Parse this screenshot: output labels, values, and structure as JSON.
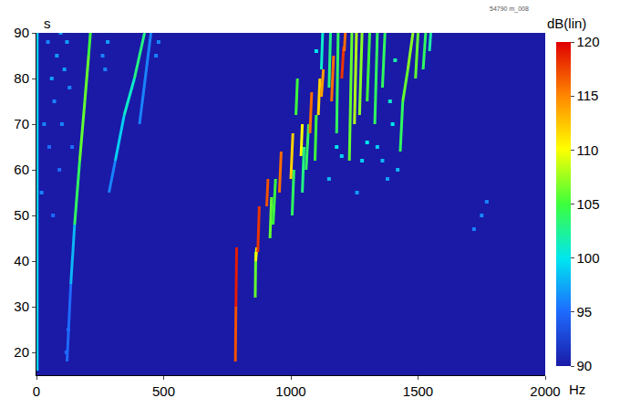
{
  "chart_data": {
    "type": "heatmap",
    "x_label": "Hz",
    "y_label": "s",
    "colorbar_label": "dB(lin)",
    "annotations": [
      "54790 m_008"
    ],
    "xlim": [
      0,
      2000
    ],
    "xticks": [
      0,
      500,
      1000,
      1500,
      2000
    ],
    "ylim": [
      15,
      90
    ],
    "yticks": [
      20,
      30,
      40,
      50,
      60,
      70,
      80,
      90
    ],
    "grid": false,
    "colorbar_range": [
      90,
      120
    ],
    "colorbar_ticks": [
      90,
      95,
      100,
      105,
      110,
      115,
      120
    ],
    "tracks": [
      [
        3,
        16,
        3,
        90,
        99
      ],
      [
        120,
        18,
        135,
        35,
        95
      ],
      [
        135,
        35,
        150,
        48,
        98
      ],
      [
        150,
        48,
        170,
        62,
        104
      ],
      [
        170,
        62,
        190,
        75,
        106
      ],
      [
        190,
        75,
        205,
        85,
        106
      ],
      [
        205,
        85,
        212,
        90,
        105
      ],
      [
        285,
        55,
        310,
        62,
        96
      ],
      [
        310,
        62,
        345,
        72,
        99
      ],
      [
        345,
        72,
        385,
        80,
        101
      ],
      [
        385,
        80,
        425,
        90,
        103
      ],
      [
        405,
        70,
        450,
        90,
        96
      ],
      [
        782,
        18,
        784,
        30,
        117
      ],
      [
        784,
        30,
        787,
        43,
        119
      ],
      [
        860,
        32,
        862,
        42,
        106
      ],
      [
        862,
        40,
        866,
        43,
        110
      ],
      [
        870,
        42,
        876,
        52,
        118
      ],
      [
        905,
        52,
        910,
        58,
        117
      ],
      [
        918,
        45,
        924,
        54,
        106
      ],
      [
        930,
        48,
        940,
        58,
        105
      ],
      [
        955,
        55,
        962,
        64,
        116
      ],
      [
        1005,
        50,
        1012,
        60,
        104
      ],
      [
        1000,
        58,
        1008,
        68,
        112
      ],
      [
        1020,
        72,
        1026,
        80,
        105
      ],
      [
        1040,
        63,
        1045,
        70,
        110
      ],
      [
        1045,
        55,
        1052,
        65,
        103
      ],
      [
        1060,
        60,
        1070,
        70,
        104
      ],
      [
        1075,
        68,
        1082,
        77,
        116
      ],
      [
        1095,
        62,
        1100,
        72,
        105
      ],
      [
        1108,
        72,
        1114,
        80,
        112
      ],
      [
        1120,
        76,
        1128,
        82,
        114
      ],
      [
        1120,
        82,
        1125,
        90,
        101
      ],
      [
        1150,
        78,
        1156,
        90,
        103
      ],
      [
        1160,
        75,
        1168,
        85,
        116
      ],
      [
        1180,
        68,
        1186,
        90,
        104
      ],
      [
        1200,
        80,
        1208,
        87,
        118
      ],
      [
        1210,
        86,
        1214,
        90,
        116
      ],
      [
        1230,
        62,
        1240,
        90,
        106
      ],
      [
        1250,
        70,
        1258,
        90,
        108
      ],
      [
        1270,
        72,
        1280,
        90,
        107
      ],
      [
        1300,
        75,
        1310,
        90,
        105
      ],
      [
        1330,
        70,
        1340,
        90,
        104
      ],
      [
        1360,
        78,
        1370,
        90,
        104
      ],
      [
        1430,
        64,
        1440,
        75,
        104
      ],
      [
        1440,
        75,
        1460,
        82,
        106
      ],
      [
        1460,
        82,
        1480,
        90,
        107
      ],
      [
        1490,
        80,
        1500,
        90,
        106
      ],
      [
        1520,
        82,
        1530,
        90,
        104
      ],
      [
        1545,
        86,
        1550,
        90,
        102
      ]
    ],
    "speckles": [
      [
        20,
        55,
        96
      ],
      [
        30,
        70,
        96
      ],
      [
        50,
        65,
        95
      ],
      [
        60,
        80,
        97
      ],
      [
        70,
        75,
        96
      ],
      [
        80,
        85,
        97
      ],
      [
        90,
        60,
        95
      ],
      [
        100,
        70,
        96
      ],
      [
        110,
        82,
        97
      ],
      [
        120,
        88,
        97
      ],
      [
        130,
        78,
        96
      ],
      [
        140,
        65,
        95
      ],
      [
        45,
        88,
        96
      ],
      [
        95,
        90,
        97
      ],
      [
        65,
        50,
        95
      ],
      [
        125,
        25,
        95
      ],
      [
        118,
        20,
        95
      ],
      [
        260,
        85,
        96
      ],
      [
        270,
        82,
        96
      ],
      [
        280,
        88,
        97
      ],
      [
        470,
        85,
        96
      ],
      [
        480,
        88,
        96
      ],
      [
        1150,
        58,
        98
      ],
      [
        1180,
        65,
        100
      ],
      [
        1200,
        63,
        99
      ],
      [
        1260,
        55,
        97
      ],
      [
        1280,
        62,
        99
      ],
      [
        1300,
        66,
        100
      ],
      [
        1360,
        62,
        98
      ],
      [
        1380,
        58,
        97
      ],
      [
        1400,
        70,
        100
      ],
      [
        1420,
        60,
        98
      ],
      [
        1340,
        65,
        99
      ],
      [
        1390,
        75,
        101
      ],
      [
        1410,
        84,
        102
      ],
      [
        1100,
        86,
        100
      ],
      [
        1720,
        47,
        96
      ],
      [
        1750,
        50,
        96
      ],
      [
        1770,
        53,
        96
      ]
    ]
  }
}
